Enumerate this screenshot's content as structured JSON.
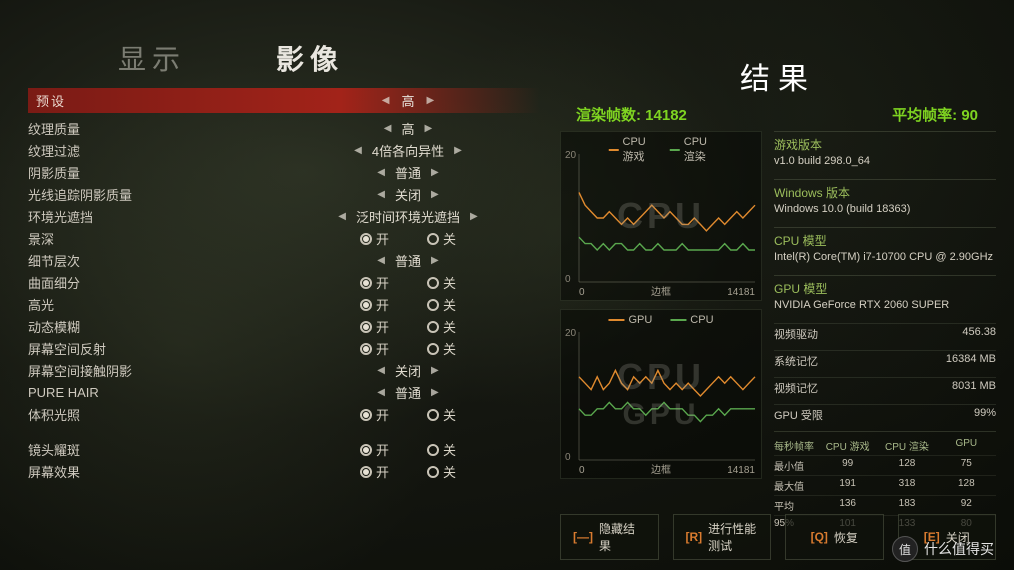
{
  "tabs": {
    "display": "显示",
    "video": "影像"
  },
  "preset": {
    "label": "预设",
    "value": "高"
  },
  "settings": {
    "rows": [
      {
        "label": "纹理质量",
        "type": "value",
        "value": "高"
      },
      {
        "label": "纹理过滤",
        "type": "value",
        "value": "4倍各向异性"
      },
      {
        "label": "阴影质量",
        "type": "value",
        "value": "普通"
      },
      {
        "label": "光线追踪阴影质量",
        "type": "value",
        "value": "关闭"
      },
      {
        "label": "环境光遮挡",
        "type": "value",
        "value": "泛时间环境光遮挡"
      },
      {
        "label": "景深",
        "type": "radio",
        "on": true
      },
      {
        "label": "细节层次",
        "type": "value",
        "value": "普通"
      },
      {
        "label": "曲面细分",
        "type": "radio",
        "on": true
      },
      {
        "label": "高光",
        "type": "radio",
        "on": true
      },
      {
        "label": "动态模糊",
        "type": "radio",
        "on": true
      },
      {
        "label": "屏幕空间反射",
        "type": "radio",
        "on": true
      },
      {
        "label": "屏幕空间接触阴影",
        "type": "value",
        "value": "关闭"
      },
      {
        "label": "PURE HAIR",
        "type": "value",
        "value": "普通"
      },
      {
        "label": "体积光照",
        "type": "radio",
        "on": true
      },
      {
        "label": "",
        "type": "spacer"
      },
      {
        "label": "镜头耀斑",
        "type": "radio",
        "on": true
      },
      {
        "label": "屏幕效果",
        "type": "radio",
        "on": true
      }
    ],
    "radio_on": "开",
    "radio_off": "关"
  },
  "results": {
    "title": "结果",
    "frames_label": "渲染帧数:",
    "frames": "14182",
    "avg_label": "平均帧率:",
    "avg": "90",
    "chart1": {
      "legend": [
        {
          "name": "CPU 游戏",
          "color": "#e08a2e"
        },
        {
          "name": "CPU 渲染",
          "color": "#5aa84e"
        }
      ],
      "watermark": "CPU",
      "ylim": [
        0,
        20
      ],
      "yticks": [
        0,
        20
      ],
      "xlim": [
        0,
        14181
      ],
      "xlabel": "边框",
      "xmax_label": "14181",
      "series1_color": "#e08a2e",
      "series1": [
        14,
        12,
        11,
        10,
        10,
        11,
        10,
        9,
        10,
        9,
        10,
        11,
        12,
        11,
        10,
        11,
        10,
        9,
        9,
        10,
        9,
        8,
        9,
        10,
        9,
        10,
        11,
        10,
        11,
        12
      ],
      "series2_color": "#5aa84e",
      "series2": [
        7,
        6,
        6,
        5,
        6,
        5,
        6,
        6,
        5,
        5,
        6,
        5,
        5,
        6,
        5,
        5,
        5,
        6,
        5,
        5,
        5,
        5,
        5,
        5,
        6,
        5,
        5,
        6,
        5,
        5
      ]
    },
    "chart2": {
      "legend": [
        {
          "name": "GPU",
          "color": "#e08a2e"
        },
        {
          "name": "CPU",
          "color": "#5aa84e"
        }
      ],
      "watermark1": "CPU",
      "watermark2": "GPU",
      "ylim": [
        0,
        20
      ],
      "yticks": [
        0,
        20
      ],
      "xlim": [
        0,
        14181
      ],
      "xlabel": "边框",
      "xmax_label": "14181",
      "series1_color": "#e08a2e",
      "series1": [
        13,
        12,
        11,
        13,
        11,
        12,
        14,
        12,
        11,
        13,
        12,
        13,
        12,
        14,
        12,
        11,
        12,
        11,
        12,
        11,
        10,
        11,
        12,
        13,
        12,
        13,
        12,
        11,
        12,
        13
      ],
      "series2_color": "#5aa84e",
      "series2": [
        8,
        7,
        7,
        8,
        8,
        9,
        8,
        8,
        9,
        8,
        8,
        7,
        8,
        8,
        9,
        8,
        8,
        8,
        7,
        7,
        6,
        7,
        7,
        8,
        7,
        8,
        8,
        8,
        8,
        8
      ]
    },
    "info": {
      "game_version_hd": "游戏版本",
      "game_version": "v1.0 build 298.0_64",
      "win_hd": "Windows 版本",
      "win": "Windows 10.0 (build 18363)",
      "cpu_hd": "CPU 模型",
      "cpu": "Intel(R) Core(TM) i7-10700 CPU @ 2.90GHz",
      "gpu_hd": "GPU 模型",
      "gpu": "NVIDIA GeForce RTX 2060 SUPER",
      "kv": [
        {
          "k": "视频驱动",
          "v": "456.38"
        },
        {
          "k": "系统记忆",
          "v": "16384 MB"
        },
        {
          "k": "视频记忆",
          "v": "8031 MB"
        },
        {
          "k": "GPU 受限",
          "v": "99%"
        }
      ],
      "stats": {
        "per_sec": "每秒帧率",
        "cols": [
          "CPU 游戏",
          "CPU 渲染",
          "GPU"
        ],
        "rows": [
          {
            "label": "最小值",
            "vals": [
              "99",
              "128",
              "75"
            ]
          },
          {
            "label": "最大值",
            "vals": [
              "191",
              "318",
              "128"
            ]
          },
          {
            "label": "平均",
            "vals": [
              "136",
              "183",
              "92"
            ]
          },
          {
            "label": "95%",
            "vals": [
              "101",
              "133",
              "80"
            ]
          }
        ]
      }
    }
  },
  "bottom": {
    "hide": {
      "key": "[—]",
      "label": "隐藏结果"
    },
    "run": {
      "key": "[R]",
      "label": "进行性能测试"
    },
    "restore": {
      "key": "[Q]",
      "label": "恢复"
    },
    "exit": {
      "key": "[E]",
      "label": "关闭"
    }
  },
  "brand": {
    "char": "值",
    "text": "什么值得买"
  }
}
